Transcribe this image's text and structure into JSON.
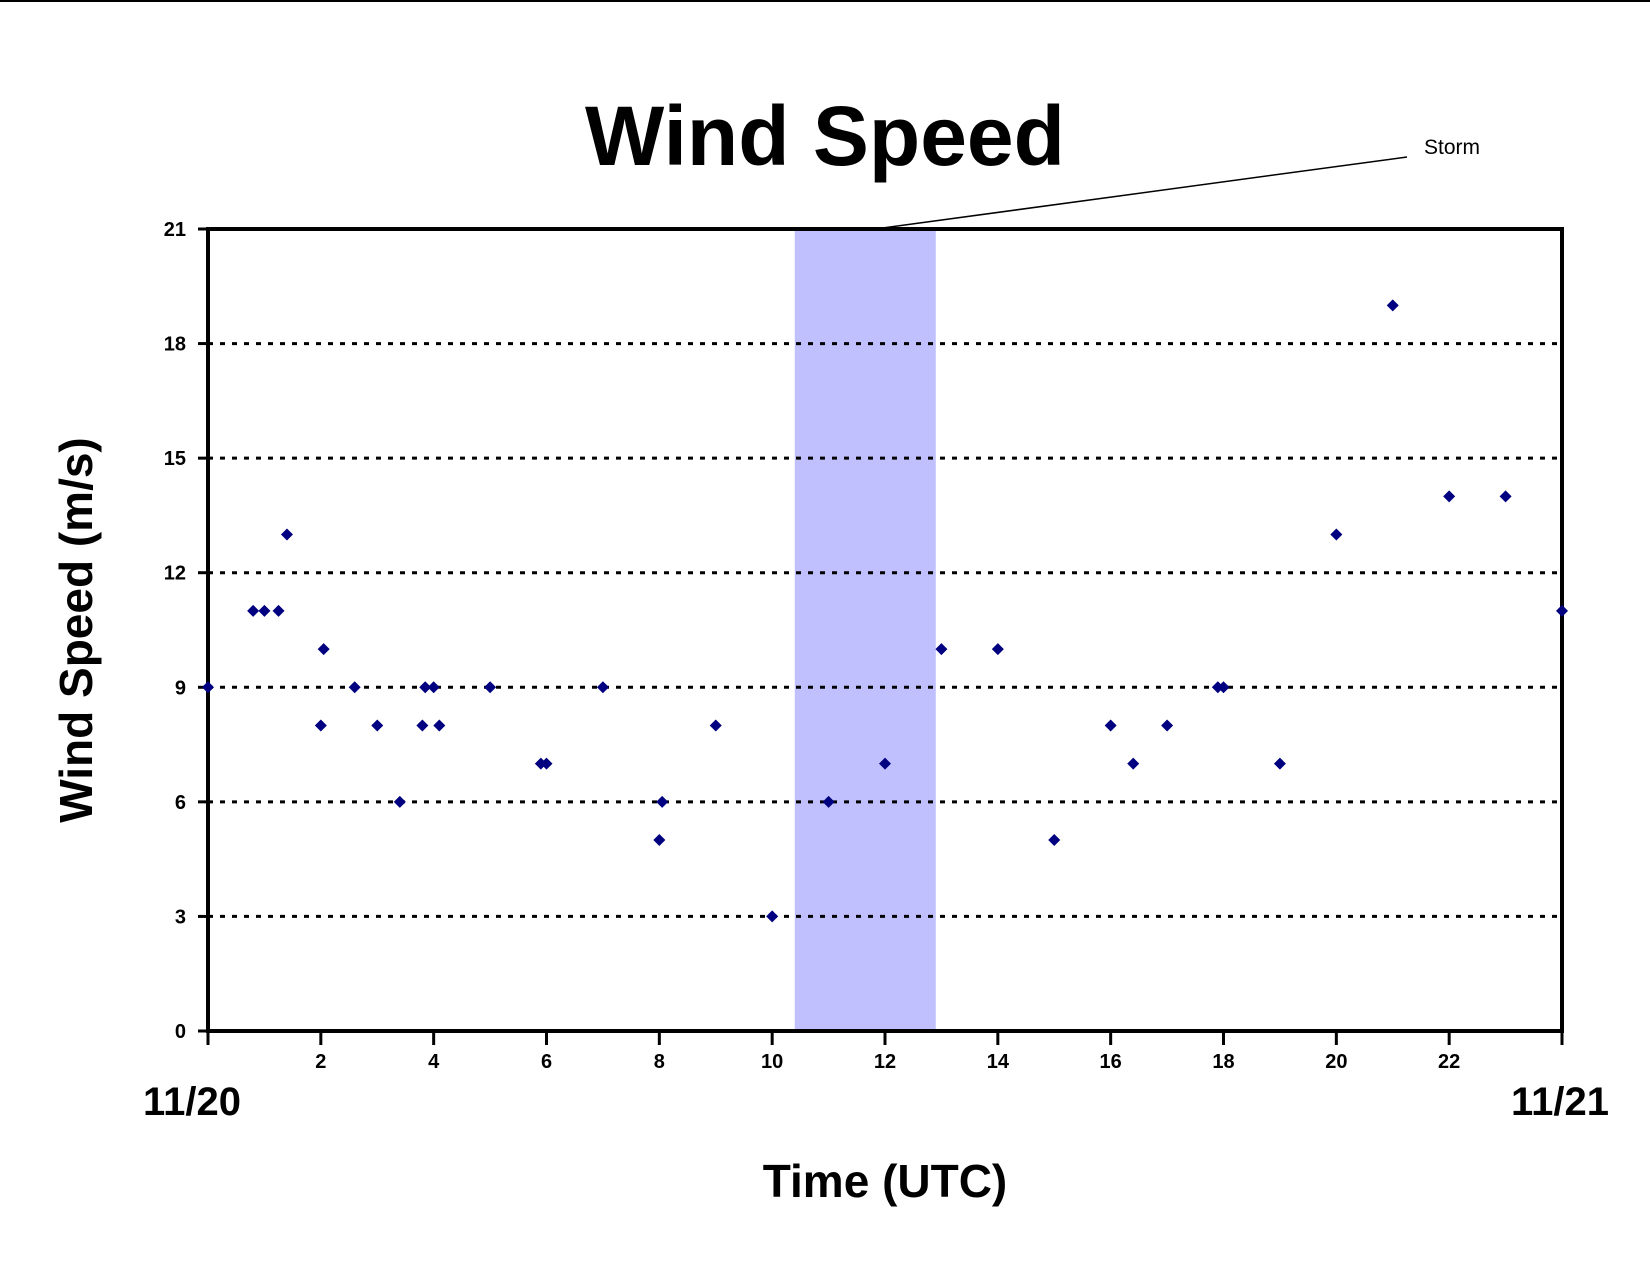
{
  "chart_data": {
    "type": "scatter",
    "title": "Wind Speed",
    "xlabel": "Time (UTC)",
    "ylabel": "Wind Speed (m/s)",
    "xlim": [
      0,
      24
    ],
    "ylim": [
      0,
      21
    ],
    "xticks": [
      2,
      4,
      6,
      8,
      10,
      12,
      14,
      16,
      18,
      20,
      22
    ],
    "yticks": [
      0,
      3,
      6,
      9,
      12,
      15,
      18,
      21
    ],
    "grid": "horizontal dotted",
    "date_labels": {
      "start": "11/20",
      "end": "11/21"
    },
    "shaded_region": {
      "x": [
        10.4,
        12.9
      ],
      "label": "Storm",
      "color": "#c0c0ff"
    },
    "marker_color": "#000080",
    "points": [
      {
        "x": 0.0,
        "y": 9
      },
      {
        "x": 0.8,
        "y": 11
      },
      {
        "x": 1.0,
        "y": 11
      },
      {
        "x": 1.25,
        "y": 11
      },
      {
        "x": 1.4,
        "y": 13
      },
      {
        "x": 2.0,
        "y": 8
      },
      {
        "x": 2.05,
        "y": 10
      },
      {
        "x": 2.6,
        "y": 9
      },
      {
        "x": 3.0,
        "y": 8
      },
      {
        "x": 3.4,
        "y": 6
      },
      {
        "x": 3.8,
        "y": 8
      },
      {
        "x": 3.85,
        "y": 9
      },
      {
        "x": 4.0,
        "y": 9
      },
      {
        "x": 4.1,
        "y": 8
      },
      {
        "x": 5.0,
        "y": 9
      },
      {
        "x": 5.9,
        "y": 7
      },
      {
        "x": 6.0,
        "y": 7
      },
      {
        "x": 7.0,
        "y": 9
      },
      {
        "x": 8.0,
        "y": 5
      },
      {
        "x": 8.05,
        "y": 6
      },
      {
        "x": 9.0,
        "y": 8
      },
      {
        "x": 10.0,
        "y": 3
      },
      {
        "x": 11.0,
        "y": 6
      },
      {
        "x": 12.0,
        "y": 7
      },
      {
        "x": 13.0,
        "y": 10
      },
      {
        "x": 14.0,
        "y": 10
      },
      {
        "x": 15.0,
        "y": 5
      },
      {
        "x": 16.0,
        "y": 8
      },
      {
        "x": 16.4,
        "y": 7
      },
      {
        "x": 17.0,
        "y": 8
      },
      {
        "x": 17.9,
        "y": 9
      },
      {
        "x": 18.0,
        "y": 9
      },
      {
        "x": 19.0,
        "y": 7
      },
      {
        "x": 20.0,
        "y": 13
      },
      {
        "x": 21.0,
        "y": 19
      },
      {
        "x": 22.0,
        "y": 14
      },
      {
        "x": 23.0,
        "y": 14
      },
      {
        "x": 24.0,
        "y": 11
      }
    ]
  }
}
